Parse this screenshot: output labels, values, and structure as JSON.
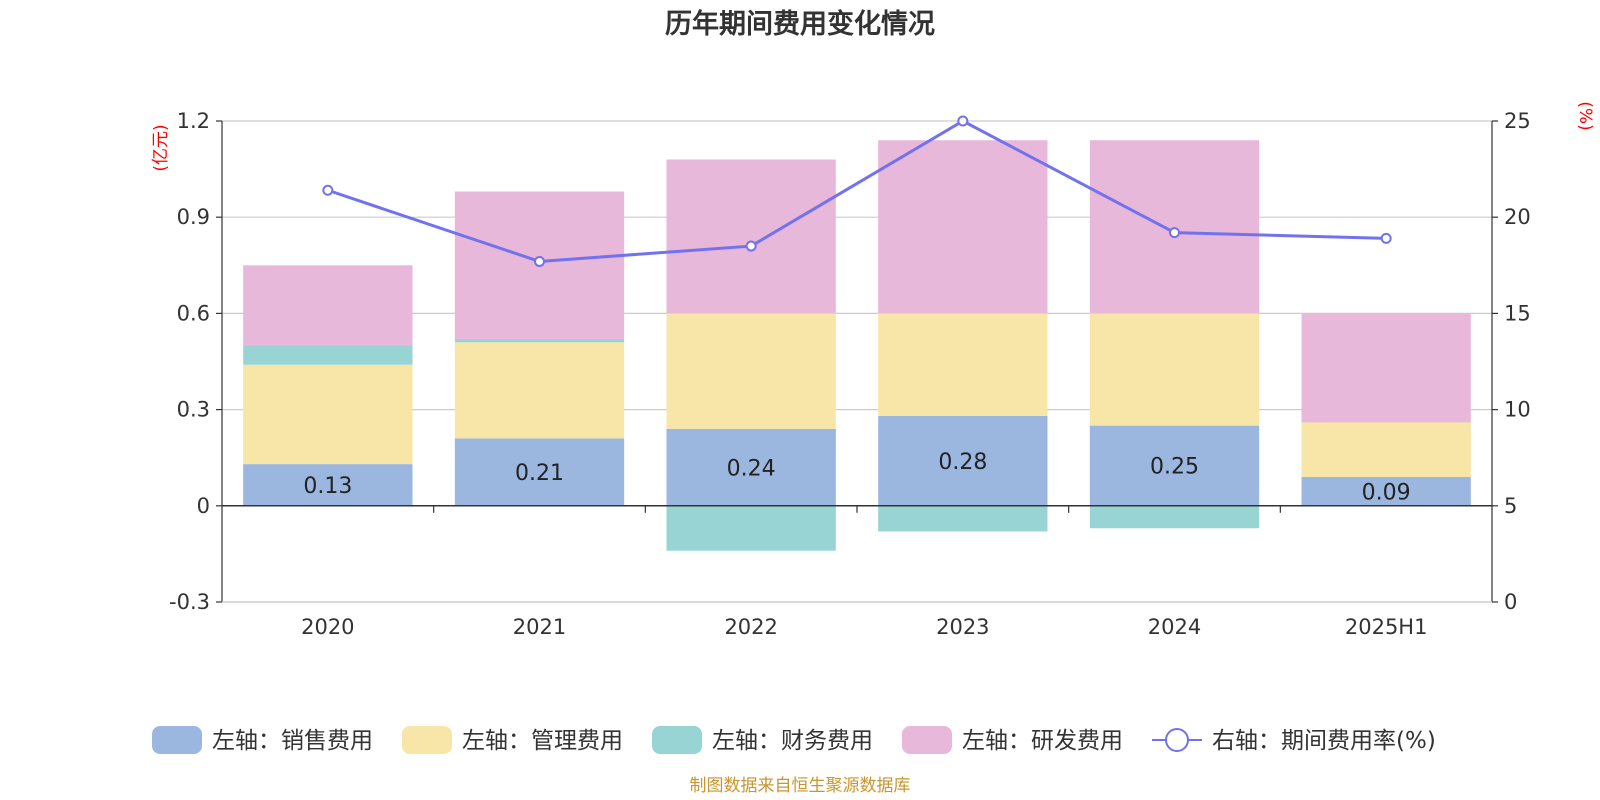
{
  "chart_data": {
    "title": "历年期间费用变化情况",
    "type": "bar",
    "stacked": true,
    "categories": [
      "2020",
      "2021",
      "2022",
      "2023",
      "2024",
      "2025H1"
    ],
    "left_axis": {
      "unit": "(亿元)",
      "ylim": [
        -0.3,
        1.2
      ],
      "ticks": [
        "1.2",
        "0.9",
        "0.6",
        "0.3",
        "0",
        "-0.3"
      ],
      "tick_values": [
        1.2,
        0.9,
        0.6,
        0.3,
        0,
        -0.3
      ]
    },
    "right_axis": {
      "unit": "(%)",
      "ylim": [
        0,
        25
      ],
      "ticks": [
        "25",
        "20",
        "15",
        "10",
        "5",
        "0"
      ],
      "tick_values": [
        25,
        20,
        15,
        10,
        5,
        0
      ]
    },
    "series": [
      {
        "name": "左轴：销售费用",
        "type": "bar",
        "axis": "left",
        "color": "#9bb7e0",
        "values": [
          0.13,
          0.21,
          0.24,
          0.28,
          0.25,
          0.09
        ],
        "data_labels": [
          "0.13",
          "0.21",
          "0.24",
          "0.28",
          "0.25",
          "0.09"
        ]
      },
      {
        "name": "左轴：管理费用",
        "type": "bar",
        "axis": "left",
        "color": "#f8e6a8",
        "values": [
          0.31,
          0.3,
          0.36,
          0.32,
          0.35,
          0.17
        ]
      },
      {
        "name": "左轴：财务费用",
        "type": "bar",
        "axis": "left",
        "color": "#98d4d4",
        "values": [
          0.06,
          0.01,
          -0.14,
          -0.08,
          -0.07,
          0.0
        ]
      },
      {
        "name": "左轴：研发费用",
        "type": "bar",
        "axis": "left",
        "color": "#e8b8da",
        "values": [
          0.25,
          0.46,
          0.48,
          0.54,
          0.54,
          0.34
        ]
      },
      {
        "name": "右轴：期间费用率(%)",
        "type": "line",
        "axis": "right",
        "color": "#7272ee",
        "values": [
          21.4,
          17.7,
          18.5,
          25.0,
          19.2,
          18.9
        ]
      }
    ],
    "grid": true,
    "legend_position": "bottom"
  },
  "source_note": "制图数据来自恒生聚源数据库"
}
